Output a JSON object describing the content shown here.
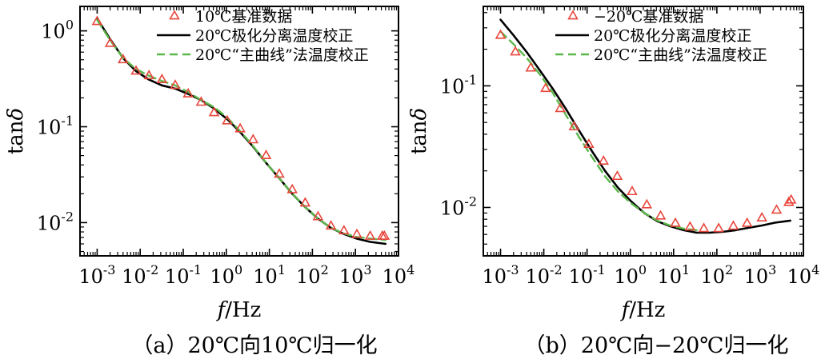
{
  "chart_data": [
    {
      "type": "line",
      "panel": "a",
      "caption": "（a）20℃向10℃归一化",
      "xlabel_italic": "f",
      "xlabel_rest": "/Hz",
      "ylabel_main": "tan",
      "ylabel_italic": "δ",
      "xscale": "log",
      "yscale": "log",
      "xlim": [
        0.0004,
        10000
      ],
      "ylim": [
        0.0045,
        1.8
      ],
      "xticks": [
        0.001,
        0.01,
        0.1,
        1,
        10,
        100,
        1000,
        10000
      ],
      "xtick_exponents": [
        "-3",
        "-2",
        "-1",
        "0",
        "1",
        "2",
        "3",
        "4"
      ],
      "yticks": [
        0.01,
        0.1,
        1
      ],
      "ytick_exponents": [
        "-2",
        "-1",
        "0"
      ],
      "tick_base": "10",
      "grid": false,
      "legend_position": "top-right",
      "series": [
        {
          "name": "10℃基准数据",
          "kind": "scatter-triangle",
          "color": "#e8463c",
          "x": [
            0.001,
            0.002,
            0.004,
            0.008,
            0.016,
            0.032,
            0.065,
            0.13,
            0.26,
            0.52,
            1.05,
            2.1,
            4.2,
            8.4,
            17,
            34,
            68,
            135,
            270,
            540,
            1080,
            2200,
            4200,
            4700
          ],
          "y": [
            1.25,
            0.74,
            0.5,
            0.38,
            0.34,
            0.31,
            0.27,
            0.22,
            0.18,
            0.14,
            0.115,
            0.095,
            0.073,
            0.05,
            0.032,
            0.022,
            0.016,
            0.0115,
            0.0092,
            0.0082,
            0.0075,
            0.0072,
            0.0072,
            0.0072
          ]
        },
        {
          "name": "20℃极化分离温度校正",
          "kind": "line-solid",
          "color": "#000000",
          "x": [
            0.001,
            0.002,
            0.004,
            0.008,
            0.016,
            0.032,
            0.065,
            0.13,
            0.26,
            0.52,
            1.05,
            2.1,
            4.2,
            8.4,
            17,
            34,
            68,
            135,
            270,
            540,
            1080,
            2200,
            5000
          ],
          "y": [
            1.35,
            0.82,
            0.52,
            0.38,
            0.31,
            0.27,
            0.25,
            0.22,
            0.19,
            0.155,
            0.12,
            0.088,
            0.062,
            0.042,
            0.029,
            0.02,
            0.0145,
            0.011,
            0.0088,
            0.0076,
            0.0068,
            0.0063,
            0.006
          ]
        },
        {
          "name": "20℃“主曲线”法温度校正",
          "kind": "line-dashed",
          "color": "#5cb84a",
          "x": [
            0.001,
            0.002,
            0.004,
            0.008,
            0.016,
            0.032,
            0.065,
            0.13,
            0.26,
            0.52,
            1.05,
            2.1,
            4.2,
            8.4,
            17,
            34,
            68,
            135,
            270,
            540,
            1080,
            2200,
            5000
          ],
          "y": [
            1.3,
            0.8,
            0.52,
            0.4,
            0.34,
            0.3,
            0.27,
            0.23,
            0.19,
            0.16,
            0.125,
            0.09,
            0.063,
            0.042,
            0.029,
            0.02,
            0.0145,
            0.011,
            0.0088,
            0.0077,
            0.0071,
            0.0068,
            0.0066
          ]
        }
      ]
    },
    {
      "type": "line",
      "panel": "b",
      "caption": "（b）20℃向−20℃归一化",
      "xlabel_italic": "f",
      "xlabel_rest": "/Hz",
      "ylabel_main": "tan",
      "ylabel_italic": "δ",
      "xscale": "log",
      "yscale": "log",
      "xlim": [
        0.0004,
        10000
      ],
      "ylim": [
        0.004,
        0.45
      ],
      "xticks": [
        0.001,
        0.01,
        0.1,
        1,
        10,
        100,
        1000,
        10000
      ],
      "xtick_exponents": [
        "-3",
        "-2",
        "-1",
        "0",
        "1",
        "2",
        "3",
        "4"
      ],
      "yticks": [
        0.01,
        0.1
      ],
      "ytick_exponents": [
        "-2",
        "-1"
      ],
      "tick_base": "10",
      "grid": false,
      "legend_position": "top-right",
      "series": [
        {
          "name": "−20℃基准数据",
          "kind": "scatter-triangle",
          "color": "#e8463c",
          "x": [
            0.001,
            0.0022,
            0.005,
            0.011,
            0.024,
            0.05,
            0.11,
            0.24,
            0.5,
            1.1,
            2.4,
            5,
            11,
            24,
            50,
            110,
            240,
            500,
            1100,
            2400,
            4600,
            5200
          ],
          "y": [
            0.26,
            0.19,
            0.14,
            0.095,
            0.065,
            0.046,
            0.033,
            0.024,
            0.018,
            0.0135,
            0.0105,
            0.0085,
            0.0074,
            0.0069,
            0.0067,
            0.0067,
            0.007,
            0.0074,
            0.0082,
            0.0095,
            0.011,
            0.0115
          ]
        },
        {
          "name": "20℃极化分离温度校正",
          "kind": "line-solid",
          "color": "#000000",
          "x": [
            0.001,
            0.002,
            0.004,
            0.008,
            0.016,
            0.032,
            0.065,
            0.13,
            0.26,
            0.52,
            1.05,
            2.1,
            4.2,
            8.4,
            17,
            34,
            68,
            135,
            270,
            540,
            1080,
            2200,
            5000
          ],
          "y": [
            0.35,
            0.26,
            0.19,
            0.135,
            0.095,
            0.065,
            0.043,
            0.029,
            0.02,
            0.0145,
            0.0112,
            0.009,
            0.0077,
            0.007,
            0.0065,
            0.0062,
            0.0062,
            0.0063,
            0.0065,
            0.0068,
            0.0071,
            0.0075,
            0.0078
          ]
        },
        {
          "name": "20℃“主曲线”法温度校正",
          "kind": "line-dashed",
          "color": "#5cb84a",
          "x": [
            0.001,
            0.002,
            0.004,
            0.008,
            0.016,
            0.032,
            0.065,
            0.13,
            0.26,
            0.52,
            1.05,
            2.1,
            4.2,
            8.4,
            17,
            34
          ],
          "y": [
            0.28,
            0.22,
            0.17,
            0.125,
            0.088,
            0.058,
            0.038,
            0.026,
            0.018,
            0.0135,
            0.0108,
            0.009,
            0.0078,
            0.0071,
            0.0067,
            0.0065
          ]
        }
      ]
    }
  ]
}
